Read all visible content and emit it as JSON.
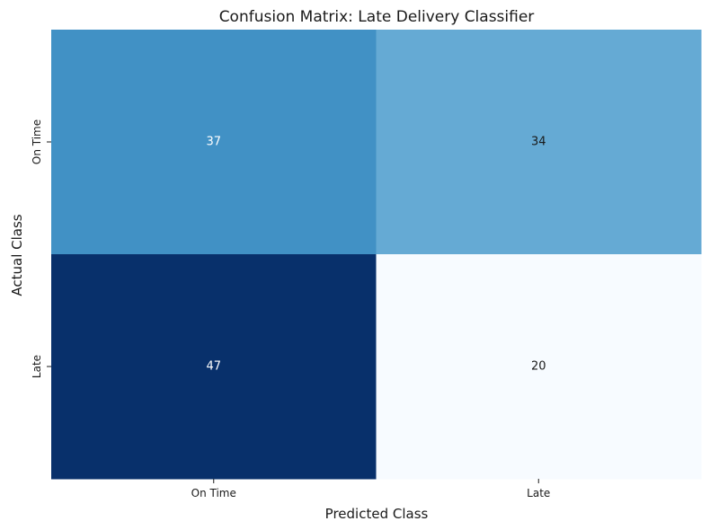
{
  "chart_data": {
    "type": "heatmap",
    "title": "Confusion Matrix: Late Delivery Classifier",
    "xlabel": "Predicted Class",
    "ylabel": "Actual Class",
    "x_categories": [
      "On Time",
      "Late"
    ],
    "y_categories": [
      "On Time",
      "Late"
    ],
    "values": [
      [
        37,
        34
      ],
      [
        47,
        20
      ]
    ],
    "colormap": "Blues",
    "value_range": [
      20,
      47
    ],
    "colorbar": false,
    "grid": false
  },
  "colors": {
    "text_dark": "#1a1a1a",
    "text_light": "#ffffff",
    "cmap_stops": [
      "#f7fbff",
      "#deebf7",
      "#c6dbef",
      "#9ecae1",
      "#6baed6",
      "#4292c6",
      "#2171b5",
      "#08519c",
      "#08306b"
    ]
  }
}
